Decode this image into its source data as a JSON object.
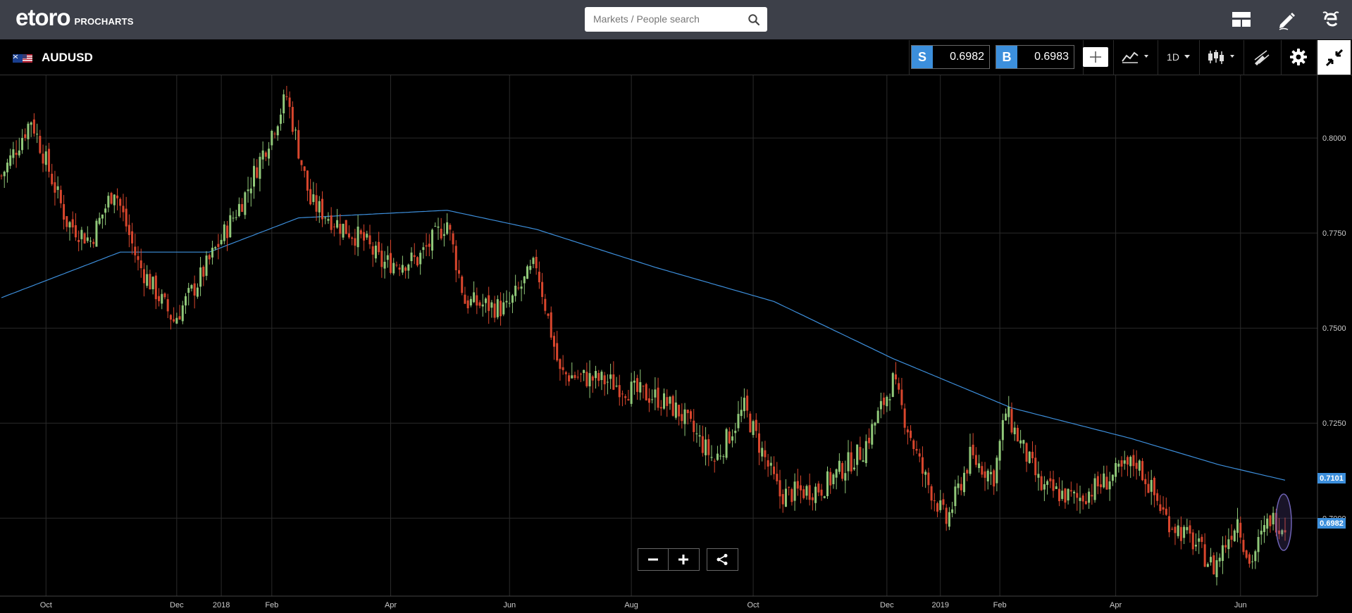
{
  "app": {
    "logo_text": "etoro",
    "logo_sub": "PROCHARTS",
    "search_placeholder": "Markets / People search"
  },
  "header": {
    "symbol": "AUDUSD",
    "sell_label": "S",
    "sell_price": "0.6982",
    "buy_label": "B",
    "buy_price": "0.6983",
    "timeframe": "1D"
  },
  "colors": {
    "topbar": "#3d4049",
    "accent": "#3c8fdc",
    "up_candle": "#90c879",
    "down_candle": "#d9462d",
    "ma_line": "#3d8fdc"
  },
  "chart_data": {
    "type": "candlestick",
    "symbol": "AUDUSD",
    "timeframe": "1D",
    "y_range": [
      0.6795,
      0.8165
    ],
    "y_ticks": [
      {
        "value": 0.8,
        "label": "0.8000"
      },
      {
        "value": 0.775,
        "label": "0.7750"
      },
      {
        "value": 0.75,
        "label": "0.7500"
      },
      {
        "value": 0.725,
        "label": "0.7250"
      },
      {
        "value": 0.7,
        "label": "0.7000"
      }
    ],
    "x_ticks": [
      {
        "label": "Oct",
        "index": 15
      },
      {
        "label": "Dec",
        "index": 59
      },
      {
        "label": "2018",
        "index": 74
      },
      {
        "label": "Feb",
        "index": 91
      },
      {
        "label": "Apr",
        "index": 131
      },
      {
        "label": "Jun",
        "index": 171
      },
      {
        "label": "Aug",
        "index": 212
      },
      {
        "label": "Oct",
        "index": 253
      },
      {
        "label": "Dec",
        "index": 298
      },
      {
        "label": "2019",
        "index": 316
      },
      {
        "label": "Feb",
        "index": 336
      },
      {
        "label": "Apr",
        "index": 375
      },
      {
        "label": "Jun",
        "index": 417
      }
    ],
    "last_price_label": "0.6982",
    "ma_value_label": "0.7101",
    "series": [
      {
        "name": "AUDUSD daily close",
        "anchors": [
          [
            0,
            0.79
          ],
          [
            10,
            0.805
          ],
          [
            22,
            0.778
          ],
          [
            30,
            0.773
          ],
          [
            38,
            0.787
          ],
          [
            46,
            0.767
          ],
          [
            58,
            0.752
          ],
          [
            66,
            0.762
          ],
          [
            82,
            0.785
          ],
          [
            96,
            0.811
          ],
          [
            104,
            0.783
          ],
          [
            114,
            0.777
          ],
          [
            122,
            0.773
          ],
          [
            128,
            0.767
          ],
          [
            140,
            0.768
          ],
          [
            150,
            0.778
          ],
          [
            156,
            0.757
          ],
          [
            170,
            0.755
          ],
          [
            180,
            0.767
          ],
          [
            188,
            0.738
          ],
          [
            204,
            0.736
          ],
          [
            214,
            0.733
          ],
          [
            220,
            0.732
          ],
          [
            228,
            0.728
          ],
          [
            240,
            0.715
          ],
          [
            250,
            0.729
          ],
          [
            262,
            0.706
          ],
          [
            276,
            0.708
          ],
          [
            290,
            0.718
          ],
          [
            300,
            0.736
          ],
          [
            310,
            0.712
          ],
          [
            318,
            0.699
          ],
          [
            326,
            0.716
          ],
          [
            334,
            0.711
          ],
          [
            338,
            0.728
          ],
          [
            350,
            0.708
          ],
          [
            362,
            0.705
          ],
          [
            372,
            0.71
          ],
          [
            382,
            0.715
          ],
          [
            392,
            0.7
          ],
          [
            402,
            0.693
          ],
          [
            408,
            0.687
          ],
          [
            416,
            0.7
          ],
          [
            420,
            0.688
          ],
          [
            427,
            0.7
          ],
          [
            432,
            0.698
          ]
        ]
      },
      {
        "name": "Moving average",
        "anchors": [
          [
            0,
            0.758
          ],
          [
            40,
            0.77
          ],
          [
            70,
            0.77
          ],
          [
            100,
            0.779
          ],
          [
            150,
            0.781
          ],
          [
            180,
            0.776
          ],
          [
            220,
            0.766
          ],
          [
            260,
            0.757
          ],
          [
            300,
            0.742
          ],
          [
            340,
            0.729
          ],
          [
            380,
            0.721
          ],
          [
            410,
            0.714
          ],
          [
            432,
            0.71
          ]
        ]
      }
    ]
  }
}
